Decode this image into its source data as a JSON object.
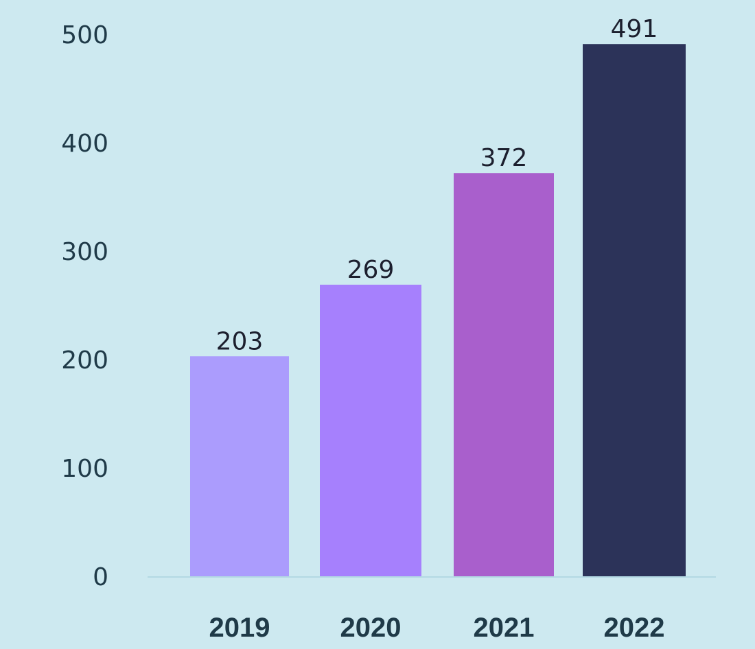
{
  "chart_data": {
    "type": "bar",
    "categories": [
      "2019",
      "2020",
      "2021",
      "2022"
    ],
    "values": [
      203,
      269,
      372,
      491
    ],
    "data_labels": [
      "203",
      "269",
      "372",
      "491"
    ],
    "title": "",
    "xlabel": "",
    "ylabel": "",
    "ylim": [
      0,
      500
    ],
    "yticks": [
      "0",
      "100",
      "200",
      "300",
      "400",
      "500"
    ],
    "grid": false,
    "legend": "none",
    "colors": [
      "#ab9cfd",
      "#a680fd",
      "#a95fcc",
      "#2c3359"
    ],
    "background": "#cde9f0",
    "axis_color": "#b3d9e3"
  }
}
